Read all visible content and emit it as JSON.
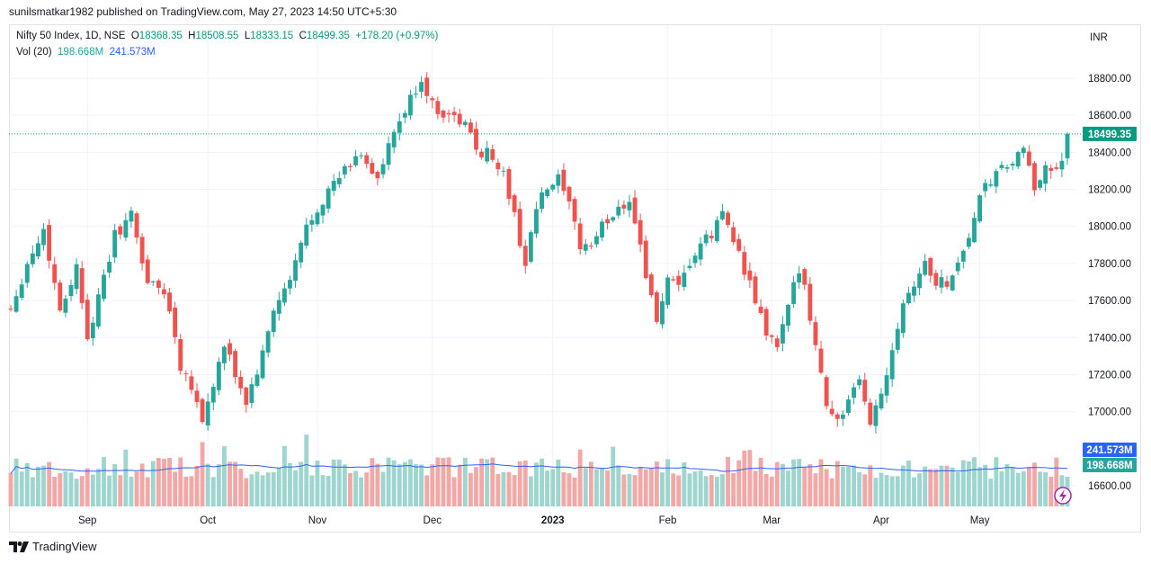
{
  "header": {
    "published": "sunilsmatkar1982 published on TradingView.com, May 27, 2023 14:50 UTC+5:30"
  },
  "legend": {
    "symbol": "Nifty 50 Index, 1D, NSE",
    "o_label": "O",
    "o": "18368.35",
    "h_label": "H",
    "h": "18508.55",
    "l_label": "L",
    "l": "18333.15",
    "c_label": "C",
    "c": "18499.35",
    "change": "+178.20 (+0.97%)",
    "vol_label": "Vol (20)",
    "vol": "198.668M",
    "vol_ma": "241.573M"
  },
  "footer": {
    "brand": "TradingView"
  },
  "colors": {
    "up": "#26a69a",
    "down": "#ef5350",
    "up_vol": "#9fd5cf",
    "down_vol": "#f3a8a8",
    "ma": "#2962ff",
    "last_price": "#089981",
    "ma_tag": "#2962ff"
  },
  "chart_data": {
    "type": "candlestick",
    "currency": "INR",
    "price_ticks": [
      16600,
      17000,
      17200,
      17400,
      17600,
      17800,
      18000,
      18200,
      18400,
      18600,
      18800
    ],
    "price_tick_labels": [
      "16600.00",
      "17000.00",
      "17200.00",
      "17400.00",
      "17600.00",
      "17800.00",
      "18000.00",
      "18200.00",
      "18400.00",
      "18600.00",
      "18800.00"
    ],
    "ylim": [
      16400,
      18950
    ],
    "x_labels": [
      {
        "index": 14,
        "label": "Sep"
      },
      {
        "index": 36,
        "label": "Oct"
      },
      {
        "index": 56,
        "label": "Nov"
      },
      {
        "index": 77,
        "label": "Dec"
      },
      {
        "index": 99,
        "label": "2023"
      },
      {
        "index": 120,
        "label": "Feb"
      },
      {
        "index": 139,
        "label": "Mar"
      },
      {
        "index": 159,
        "label": "Apr"
      },
      {
        "index": 177,
        "label": "May"
      }
    ],
    "last_price": 18499.35,
    "last_price_label": "18499.35",
    "volume_ma_label": "241.573M",
    "volume_label": "198.668M",
    "anchors": [
      [
        0,
        17560
      ],
      [
        3,
        17800
      ],
      [
        6,
        17980
      ],
      [
        9,
        17550
      ],
      [
        12,
        17780
      ],
      [
        14,
        17420
      ],
      [
        16,
        17600
      ],
      [
        19,
        17950
      ],
      [
        22,
        18060
      ],
      [
        25,
        17700
      ],
      [
        28,
        17650
      ],
      [
        30,
        17420
      ],
      [
        31,
        17250
      ],
      [
        33,
        17150
      ],
      [
        35,
        16950
      ],
      [
        37,
        17150
      ],
      [
        39,
        17350
      ],
      [
        41,
        17200
      ],
      [
        43,
        17050
      ],
      [
        46,
        17300
      ],
      [
        48,
        17550
      ],
      [
        51,
        17700
      ],
      [
        54,
        18000
      ],
      [
        57,
        18150
      ],
      [
        61,
        18300
      ],
      [
        64,
        18400
      ],
      [
        67,
        18250
      ],
      [
        70,
        18500
      ],
      [
        73,
        18680
      ],
      [
        75,
        18800
      ],
      [
        77,
        18650
      ],
      [
        80,
        18600
      ],
      [
        83,
        18550
      ],
      [
        85,
        18420
      ],
      [
        88,
        18380
      ],
      [
        90,
        18280
      ],
      [
        92,
        18050
      ],
      [
        94,
        17800
      ],
      [
        96,
        18100
      ],
      [
        98,
        18200
      ],
      [
        100,
        18250
      ],
      [
        102,
        18100
      ],
      [
        104,
        17900
      ],
      [
        106,
        17900
      ],
      [
        108,
        18000
      ],
      [
        111,
        18100
      ],
      [
        113,
        18150
      ],
      [
        115,
        17900
      ],
      [
        117,
        17600
      ],
      [
        118,
        17500
      ],
      [
        120,
        17700
      ],
      [
        122,
        17650
      ],
      [
        124,
        17800
      ],
      [
        126,
        17900
      ],
      [
        128,
        17950
      ],
      [
        130,
        18080
      ],
      [
        132,
        17950
      ],
      [
        134,
        17750
      ],
      [
        136,
        17600
      ],
      [
        138,
        17420
      ],
      [
        140,
        17350
      ],
      [
        142,
        17550
      ],
      [
        144,
        17780
      ],
      [
        145,
        17700
      ],
      [
        147,
        17350
      ],
      [
        149,
        17050
      ],
      [
        151,
        16950
      ],
      [
        153,
        17050
      ],
      [
        155,
        17150
      ],
      [
        157,
        16950
      ],
      [
        159,
        17100
      ],
      [
        161,
        17350
      ],
      [
        163,
        17600
      ],
      [
        165,
        17700
      ],
      [
        167,
        17800
      ],
      [
        169,
        17700
      ],
      [
        171,
        17700
      ],
      [
        173,
        17800
      ],
      [
        175,
        17950
      ],
      [
        177,
        18150
      ],
      [
        179,
        18250
      ],
      [
        181,
        18300
      ],
      [
        183,
        18350
      ],
      [
        185,
        18400
      ],
      [
        187,
        18200
      ],
      [
        189,
        18350
      ],
      [
        191,
        18280
      ],
      [
        193,
        18368
      ]
    ]
  }
}
